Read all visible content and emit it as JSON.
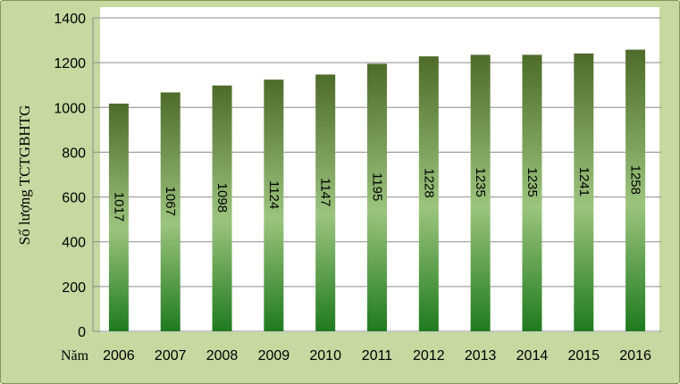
{
  "chart_data": {
    "type": "bar",
    "categories": [
      "2006",
      "2007",
      "2008",
      "2009",
      "2010",
      "2011",
      "2012",
      "2013",
      "2014",
      "2015",
      "2016"
    ],
    "values": [
      1017,
      1067,
      1098,
      1124,
      1147,
      1195,
      1228,
      1235,
      1235,
      1241,
      1258
    ],
    "title": "",
    "xlabel": "Năm",
    "ylabel": "Số lượng TCTGBHTG",
    "ylim": [
      0,
      1400
    ],
    "yticks": [
      0,
      200,
      400,
      600,
      800,
      1000,
      1200,
      1400
    ],
    "grid": true,
    "legend": "none",
    "data_labels": "inside-rotated",
    "colors": {
      "bar_top": "#4e6b2a",
      "bar_mid": "#9cc47e",
      "bar_bottom": "#1f7a1f",
      "plot_bg": "#ffffff",
      "frame_bg": "#c5d9a0"
    }
  }
}
